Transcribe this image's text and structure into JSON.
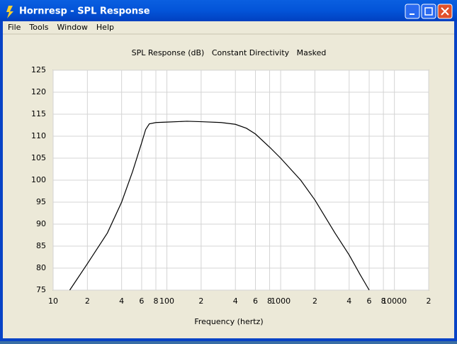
{
  "window": {
    "title": "Hornresp - SPL Response"
  },
  "menu": [
    "File",
    "Tools",
    "Window",
    "Help"
  ],
  "chart_data": {
    "type": "line",
    "title": "SPL Response (dB)   Constant Directivity   Masked",
    "xlabel": "Frequency (hertz)",
    "xscale": "log",
    "grid": true,
    "color": "#000000",
    "x": [
      14,
      20,
      30,
      40,
      50,
      60,
      65,
      70,
      80,
      100,
      150,
      200,
      300,
      400,
      500,
      600,
      800,
      1000,
      1500,
      2000,
      3000,
      4000,
      5000,
      6000
    ],
    "values": [
      75,
      81,
      88,
      95,
      102,
      108.5,
      111.5,
      112.8,
      113.1,
      113.2,
      113.4,
      113.3,
      113.1,
      112.7,
      111.8,
      110.5,
      107.5,
      105,
      100,
      95.5,
      88,
      83,
      78.5,
      75
    ],
    "xlim": [
      10,
      20000
    ],
    "ylim": [
      75,
      125
    ],
    "xticks": [
      10,
      {
        "value": 20,
        "label": "2"
      },
      {
        "value": 40,
        "label": "4"
      },
      {
        "value": 60,
        "label": "6"
      },
      {
        "value": 80,
        "label": "8"
      },
      100,
      {
        "value": 200,
        "label": "2"
      },
      {
        "value": 400,
        "label": "4"
      },
      {
        "value": 600,
        "label": "6"
      },
      {
        "value": 800,
        "label": "8"
      },
      1000,
      {
        "value": 2000,
        "label": "2"
      },
      {
        "value": 4000,
        "label": "4"
      },
      {
        "value": 6000,
        "label": "6"
      },
      {
        "value": 8000,
        "label": "8"
      },
      10000,
      {
        "value": 20000,
        "label": "2"
      }
    ],
    "yticks": [
      75,
      80,
      85,
      90,
      95,
      100,
      105,
      110,
      115,
      120,
      125
    ]
  }
}
